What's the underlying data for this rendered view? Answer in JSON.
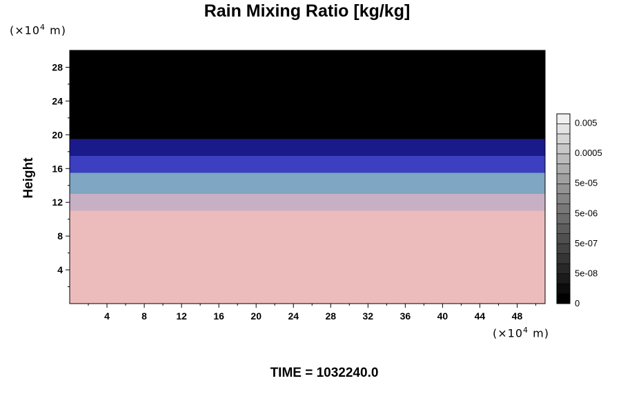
{
  "chart_data": {
    "type": "heatmap",
    "title": "Rain Mixing Ratio [kg/kg]",
    "ylabel": "Height",
    "xlabel": "",
    "x_unit": {
      "prefix": "(×10",
      "exp": "4",
      "suffix": " m)"
    },
    "y_unit": {
      "prefix": "(×10",
      "exp": "4",
      "suffix": " m)"
    },
    "xlim": [
      0,
      51
    ],
    "ylim": [
      0,
      30
    ],
    "x_ticks": [
      4,
      8,
      12,
      16,
      20,
      24,
      28,
      32,
      36,
      40,
      44,
      48
    ],
    "y_ticks": [
      4,
      8,
      12,
      16,
      20,
      24,
      28
    ],
    "layers": [
      {
        "from": 0,
        "to": 11,
        "color": "#ecbcbc"
      },
      {
        "from": 11,
        "to": 13,
        "color": "#c8b0c4"
      },
      {
        "from": 13,
        "to": 15.5,
        "color": "#7fa6c2"
      },
      {
        "from": 15.5,
        "to": 17.5,
        "color": "#3c3fc0"
      },
      {
        "from": 17.5,
        "to": 19.5,
        "color": "#1a1a8a"
      },
      {
        "from": 19.5,
        "to": 30,
        "color": "#000000"
      }
    ],
    "colorbar": {
      "labels": [
        "0.005",
        "0.0005",
        "5e-05",
        "5e-06",
        "5e-07",
        "5e-08",
        "0"
      ],
      "levels": 19,
      "colors": [
        "#000000",
        "#f0f0f0"
      ]
    },
    "footer": "TIME = 1032240.0"
  }
}
